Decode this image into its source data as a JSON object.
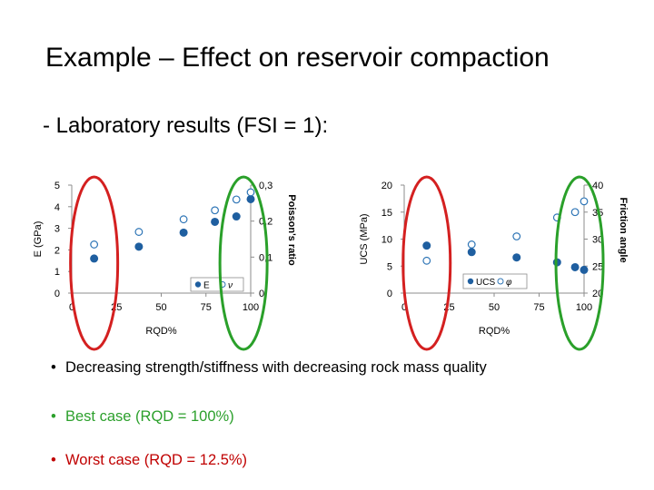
{
  "title": "Example – Effect on reservoir compaction",
  "subtitle": "- Laboratory results (FSI = 1):",
  "bullets": [
    {
      "text": "Decreasing strength/stiffness with decreasing rock mass quality",
      "color": "#000000"
    },
    {
      "text": "Best case (RQD = 100%)",
      "color": "#2ca02c"
    },
    {
      "text": "Worst case (RQD = 12.5%)",
      "color": "#c00000"
    }
  ],
  "colors": {
    "filled": "#1f5fa0",
    "hollow": "#2e75b6",
    "worst_ring": "#d42020",
    "best_ring": "#2aa02a"
  },
  "chart_data": [
    {
      "type": "scatter",
      "xlabel": "RQD%",
      "ylabel": "E (GPa)",
      "y2label": "Poisson's ratio",
      "xlim": [
        0,
        100
      ],
      "ylim": [
        0,
        5
      ],
      "y2lim": [
        0,
        0.3
      ],
      "xticks": [
        "0",
        "25",
        "50",
        "75",
        "100"
      ],
      "yticks": [
        "0",
        "1",
        "2",
        "3",
        "4",
        "5"
      ],
      "y2ticks": [
        "0",
        "0,1",
        "0,2",
        "0,3"
      ],
      "legend": [
        "E",
        "ν"
      ],
      "series": [
        {
          "name": "E",
          "marker": "filled",
          "axis": "y",
          "x": [
            12.5,
            37.5,
            62.5,
            80,
            92,
            100
          ],
          "y": [
            1.6,
            2.15,
            2.8,
            3.3,
            3.55,
            4.35
          ]
        },
        {
          "name": "ν",
          "marker": "hollow",
          "axis": "y2",
          "x": [
            12.5,
            37.5,
            62.5,
            80,
            92,
            100
          ],
          "y": [
            0.135,
            0.17,
            0.205,
            0.23,
            0.26,
            0.28
          ]
        }
      ]
    },
    {
      "type": "scatter",
      "xlabel": "RQD%",
      "ylabel": "UCS (MPa)",
      "y2label": "Friction angle",
      "xlim": [
        0,
        100
      ],
      "ylim": [
        0,
        20
      ],
      "y2lim": [
        20,
        40
      ],
      "xticks": [
        "0",
        "25",
        "50",
        "75",
        "100"
      ],
      "yticks": [
        "0",
        "5",
        "10",
        "15",
        "20"
      ],
      "y2ticks": [
        "20",
        "25",
        "30",
        "35",
        "40"
      ],
      "legend": [
        "UCS",
        "φ"
      ],
      "series": [
        {
          "name": "UCS",
          "marker": "filled",
          "axis": "y",
          "x": [
            12.5,
            37.5,
            62.5,
            85,
            95,
            100
          ],
          "y": [
            8.8,
            7.6,
            6.6,
            5.7,
            4.8,
            4.3
          ]
        },
        {
          "name": "φ",
          "marker": "hollow",
          "axis": "y2",
          "x": [
            12.5,
            37.5,
            62.5,
            85,
            95,
            100
          ],
          "y": [
            26.0,
            29.0,
            30.5,
            34.0,
            35.0,
            37.0
          ]
        }
      ]
    }
  ]
}
